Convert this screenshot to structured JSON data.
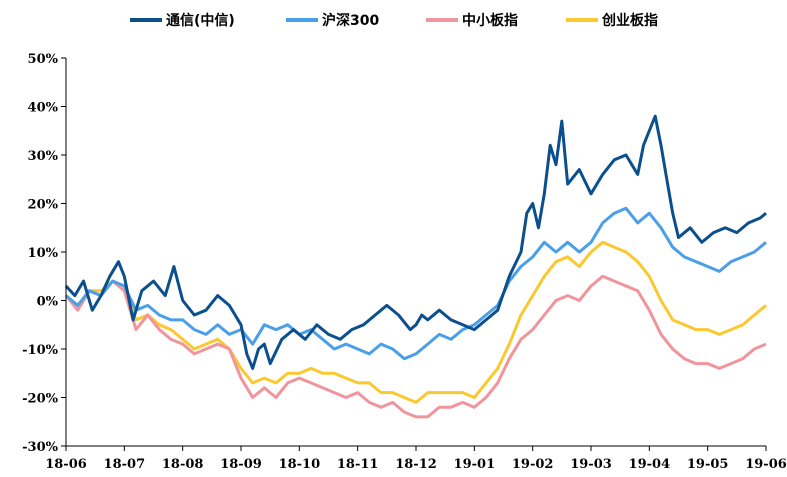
{
  "chart_data": {
    "type": "line",
    "title": "",
    "xlabel": "",
    "ylabel": "",
    "legend_position": "top",
    "grid": false,
    "x_tick_labels": [
      "18-06",
      "18-07",
      "18-08",
      "18-09",
      "18-10",
      "18-11",
      "18-12",
      "19-01",
      "19-02",
      "19-03",
      "19-04",
      "19-05",
      "19-06"
    ],
    "y_tick_labels": [
      "50%",
      "40%",
      "30%",
      "20%",
      "10%",
      "0%",
      "-10%",
      "-20%",
      "-30%"
    ],
    "ylim": [
      -30,
      50
    ],
    "y_unit": "%",
    "series": [
      {
        "name": "通信(中信)",
        "color": "#0b4f8c",
        "points": [
          [
            0,
            3
          ],
          [
            0.15,
            1
          ],
          [
            0.3,
            4
          ],
          [
            0.45,
            -2
          ],
          [
            0.6,
            1
          ],
          [
            0.75,
            5
          ],
          [
            0.9,
            8
          ],
          [
            1.0,
            5
          ],
          [
            1.15,
            -4
          ],
          [
            1.3,
            2
          ],
          [
            1.5,
            4
          ],
          [
            1.7,
            1
          ],
          [
            1.85,
            7
          ],
          [
            2.0,
            0
          ],
          [
            2.2,
            -3
          ],
          [
            2.4,
            -2
          ],
          [
            2.6,
            1
          ],
          [
            2.8,
            -1
          ],
          [
            3.0,
            -5
          ],
          [
            3.1,
            -11
          ],
          [
            3.2,
            -14
          ],
          [
            3.3,
            -10
          ],
          [
            3.4,
            -9
          ],
          [
            3.5,
            -13
          ],
          [
            3.7,
            -8
          ],
          [
            3.9,
            -6
          ],
          [
            4.1,
            -8
          ],
          [
            4.3,
            -5
          ],
          [
            4.5,
            -7
          ],
          [
            4.7,
            -8
          ],
          [
            4.9,
            -6
          ],
          [
            5.1,
            -5
          ],
          [
            5.3,
            -3
          ],
          [
            5.5,
            -1
          ],
          [
            5.7,
            -3
          ],
          [
            5.9,
            -6
          ],
          [
            6.0,
            -5
          ],
          [
            6.1,
            -3
          ],
          [
            6.2,
            -4
          ],
          [
            6.4,
            -2
          ],
          [
            6.6,
            -4
          ],
          [
            6.8,
            -5
          ],
          [
            7.0,
            -6
          ],
          [
            7.2,
            -4
          ],
          [
            7.4,
            -2
          ],
          [
            7.6,
            5
          ],
          [
            7.8,
            10
          ],
          [
            7.9,
            18
          ],
          [
            8.0,
            20
          ],
          [
            8.1,
            15
          ],
          [
            8.2,
            22
          ],
          [
            8.3,
            32
          ],
          [
            8.4,
            28
          ],
          [
            8.5,
            37
          ],
          [
            8.6,
            24
          ],
          [
            8.8,
            27
          ],
          [
            9.0,
            22
          ],
          [
            9.2,
            26
          ],
          [
            9.4,
            29
          ],
          [
            9.6,
            30
          ],
          [
            9.8,
            26
          ],
          [
            9.9,
            32
          ],
          [
            10.0,
            35
          ],
          [
            10.1,
            38
          ],
          [
            10.2,
            32
          ],
          [
            10.3,
            25
          ],
          [
            10.4,
            18
          ],
          [
            10.5,
            13
          ],
          [
            10.7,
            15
          ],
          [
            10.9,
            12
          ],
          [
            11.1,
            14
          ],
          [
            11.3,
            15
          ],
          [
            11.5,
            14
          ],
          [
            11.7,
            16
          ],
          [
            11.9,
            17
          ],
          [
            12.0,
            18
          ]
        ]
      },
      {
        "name": "沪深300",
        "color": "#4a9fe8",
        "points": [
          [
            0,
            1
          ],
          [
            0.2,
            -1
          ],
          [
            0.4,
            2
          ],
          [
            0.6,
            1
          ],
          [
            0.8,
            4
          ],
          [
            1.0,
            3
          ],
          [
            1.2,
            -2
          ],
          [
            1.4,
            -1
          ],
          [
            1.6,
            -3
          ],
          [
            1.8,
            -4
          ],
          [
            2.0,
            -4
          ],
          [
            2.2,
            -6
          ],
          [
            2.4,
            -7
          ],
          [
            2.6,
            -5
          ],
          [
            2.8,
            -7
          ],
          [
            3.0,
            -6
          ],
          [
            3.2,
            -9
          ],
          [
            3.4,
            -5
          ],
          [
            3.6,
            -6
          ],
          [
            3.8,
            -5
          ],
          [
            4.0,
            -7
          ],
          [
            4.2,
            -6
          ],
          [
            4.4,
            -8
          ],
          [
            4.6,
            -10
          ],
          [
            4.8,
            -9
          ],
          [
            5.0,
            -10
          ],
          [
            5.2,
            -11
          ],
          [
            5.4,
            -9
          ],
          [
            5.6,
            -10
          ],
          [
            5.8,
            -12
          ],
          [
            6.0,
            -11
          ],
          [
            6.2,
            -9
          ],
          [
            6.4,
            -7
          ],
          [
            6.6,
            -8
          ],
          [
            6.8,
            -6
          ],
          [
            7.0,
            -5
          ],
          [
            7.2,
            -3
          ],
          [
            7.4,
            -1
          ],
          [
            7.6,
            4
          ],
          [
            7.8,
            7
          ],
          [
            8.0,
            9
          ],
          [
            8.2,
            12
          ],
          [
            8.4,
            10
          ],
          [
            8.6,
            12
          ],
          [
            8.8,
            10
          ],
          [
            9.0,
            12
          ],
          [
            9.2,
            16
          ],
          [
            9.4,
            18
          ],
          [
            9.6,
            19
          ],
          [
            9.8,
            16
          ],
          [
            10.0,
            18
          ],
          [
            10.2,
            15
          ],
          [
            10.4,
            11
          ],
          [
            10.6,
            9
          ],
          [
            10.8,
            8
          ],
          [
            11.0,
            7
          ],
          [
            11.2,
            6
          ],
          [
            11.4,
            8
          ],
          [
            11.6,
            9
          ],
          [
            11.8,
            10
          ],
          [
            12.0,
            12
          ]
        ]
      },
      {
        "name": "中小板指",
        "color": "#f0959b",
        "points": [
          [
            0,
            1
          ],
          [
            0.2,
            -2
          ],
          [
            0.4,
            2
          ],
          [
            0.6,
            1
          ],
          [
            0.8,
            4
          ],
          [
            1.0,
            2
          ],
          [
            1.2,
            -6
          ],
          [
            1.4,
            -3
          ],
          [
            1.6,
            -6
          ],
          [
            1.8,
            -8
          ],
          [
            2.0,
            -9
          ],
          [
            2.2,
            -11
          ],
          [
            2.4,
            -10
          ],
          [
            2.6,
            -9
          ],
          [
            2.8,
            -10
          ],
          [
            3.0,
            -16
          ],
          [
            3.2,
            -20
          ],
          [
            3.4,
            -18
          ],
          [
            3.6,
            -20
          ],
          [
            3.8,
            -17
          ],
          [
            4.0,
            -16
          ],
          [
            4.2,
            -17
          ],
          [
            4.4,
            -18
          ],
          [
            4.6,
            -19
          ],
          [
            4.8,
            -20
          ],
          [
            5.0,
            -19
          ],
          [
            5.2,
            -21
          ],
          [
            5.4,
            -22
          ],
          [
            5.6,
            -21
          ],
          [
            5.8,
            -23
          ],
          [
            6.0,
            -24
          ],
          [
            6.2,
            -24
          ],
          [
            6.4,
            -22
          ],
          [
            6.6,
            -22
          ],
          [
            6.8,
            -21
          ],
          [
            7.0,
            -22
          ],
          [
            7.2,
            -20
          ],
          [
            7.4,
            -17
          ],
          [
            7.6,
            -12
          ],
          [
            7.8,
            -8
          ],
          [
            8.0,
            -6
          ],
          [
            8.2,
            -3
          ],
          [
            8.4,
            0
          ],
          [
            8.6,
            1
          ],
          [
            8.8,
            0
          ],
          [
            9.0,
            3
          ],
          [
            9.2,
            5
          ],
          [
            9.4,
            4
          ],
          [
            9.6,
            3
          ],
          [
            9.8,
            2
          ],
          [
            10.0,
            -2
          ],
          [
            10.2,
            -7
          ],
          [
            10.4,
            -10
          ],
          [
            10.6,
            -12
          ],
          [
            10.8,
            -13
          ],
          [
            11.0,
            -13
          ],
          [
            11.2,
            -14
          ],
          [
            11.4,
            -13
          ],
          [
            11.6,
            -12
          ],
          [
            11.8,
            -10
          ],
          [
            12.0,
            -9
          ]
        ]
      },
      {
        "name": "创业板指",
        "color": "#fbc82f",
        "points": [
          [
            0,
            1
          ],
          [
            0.2,
            -1
          ],
          [
            0.4,
            2
          ],
          [
            0.6,
            2
          ],
          [
            0.8,
            4
          ],
          [
            1.0,
            3
          ],
          [
            1.2,
            -4
          ],
          [
            1.4,
            -3
          ],
          [
            1.6,
            -5
          ],
          [
            1.8,
            -6
          ],
          [
            2.0,
            -8
          ],
          [
            2.2,
            -10
          ],
          [
            2.4,
            -9
          ],
          [
            2.6,
            -8
          ],
          [
            2.8,
            -10
          ],
          [
            3.0,
            -14
          ],
          [
            3.2,
            -17
          ],
          [
            3.4,
            -16
          ],
          [
            3.6,
            -17
          ],
          [
            3.8,
            -15
          ],
          [
            4.0,
            -15
          ],
          [
            4.2,
            -14
          ],
          [
            4.4,
            -15
          ],
          [
            4.6,
            -15
          ],
          [
            4.8,
            -16
          ],
          [
            5.0,
            -17
          ],
          [
            5.2,
            -17
          ],
          [
            5.4,
            -19
          ],
          [
            5.6,
            -19
          ],
          [
            5.8,
            -20
          ],
          [
            6.0,
            -21
          ],
          [
            6.2,
            -19
          ],
          [
            6.4,
            -19
          ],
          [
            6.6,
            -19
          ],
          [
            6.8,
            -19
          ],
          [
            7.0,
            -20
          ],
          [
            7.2,
            -17
          ],
          [
            7.4,
            -14
          ],
          [
            7.6,
            -9
          ],
          [
            7.8,
            -3
          ],
          [
            8.0,
            1
          ],
          [
            8.2,
            5
          ],
          [
            8.4,
            8
          ],
          [
            8.6,
            9
          ],
          [
            8.8,
            7
          ],
          [
            9.0,
            10
          ],
          [
            9.2,
            12
          ],
          [
            9.4,
            11
          ],
          [
            9.6,
            10
          ],
          [
            9.8,
            8
          ],
          [
            10.0,
            5
          ],
          [
            10.2,
            0
          ],
          [
            10.4,
            -4
          ],
          [
            10.6,
            -5
          ],
          [
            10.8,
            -6
          ],
          [
            11.0,
            -6
          ],
          [
            11.2,
            -7
          ],
          [
            11.4,
            -6
          ],
          [
            11.6,
            -5
          ],
          [
            11.8,
            -3
          ],
          [
            12.0,
            -1
          ]
        ]
      }
    ]
  }
}
